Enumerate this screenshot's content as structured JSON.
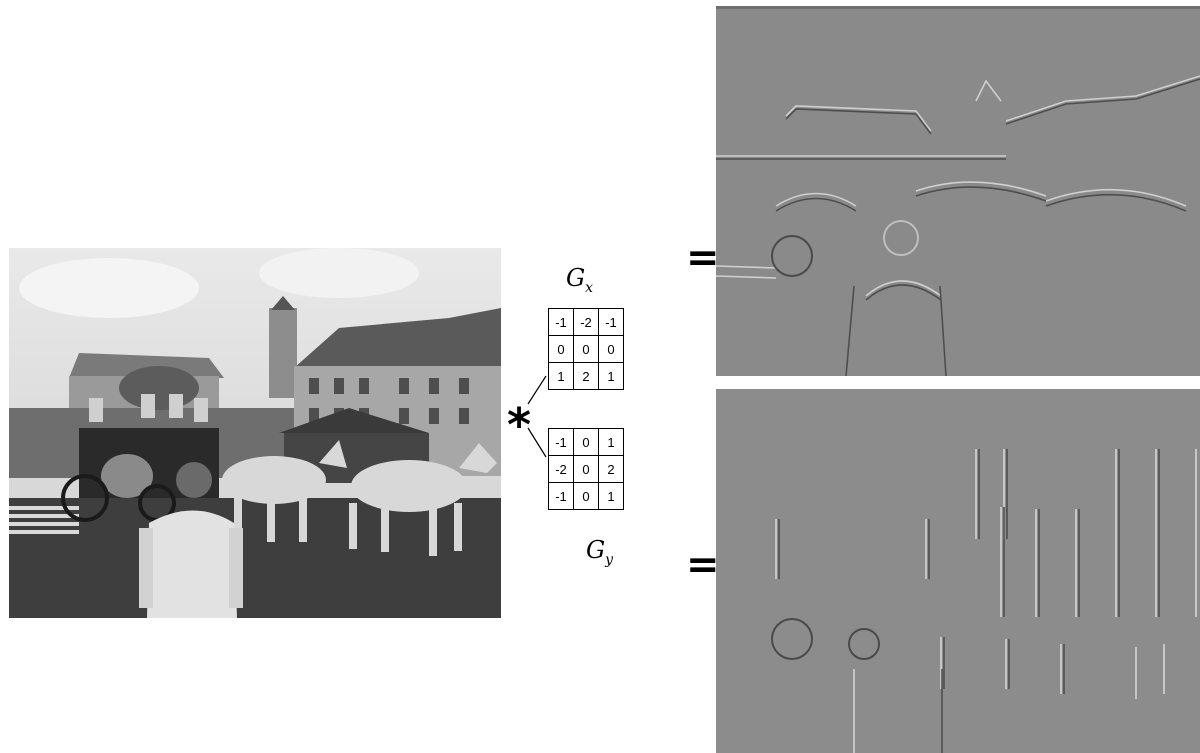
{
  "kernels": {
    "gx": {
      "label": "G",
      "subscript": "x",
      "rows": [
        [
          "-1",
          "-2",
          "-1"
        ],
        [
          "0",
          "0",
          "0"
        ],
        [
          "1",
          "2",
          "1"
        ]
      ]
    },
    "gy": {
      "label": "G",
      "subscript": "y",
      "rows": [
        [
          "-1",
          "0",
          "1"
        ],
        [
          "-2",
          "0",
          "2"
        ],
        [
          "-1",
          "0",
          "1"
        ]
      ]
    }
  },
  "operators": {
    "convolution": "*",
    "equals": "="
  },
  "colors": {
    "photo_sky": "#e4e4e4",
    "edge_gray": "#8c8c8c",
    "ink": "#000000"
  }
}
